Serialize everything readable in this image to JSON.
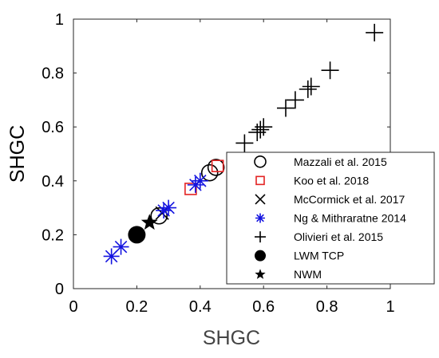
{
  "chart_data": {
    "type": "scatter",
    "xlabel": "SHGC",
    "ylabel": "SHGC",
    "xlim": [
      0,
      1
    ],
    "ylim": [
      0,
      1
    ],
    "xticks": [
      "0",
      "0.2",
      "0.4",
      "0.6",
      "0.8",
      "1"
    ],
    "yticks": [
      "0",
      "0.2",
      "0.4",
      "0.6",
      "0.8",
      "1"
    ],
    "grid": false,
    "legend_position": "right, below center",
    "series": [
      {
        "name": "Mazzali et al. 2015",
        "marker": "circle-open",
        "color": "#000000",
        "points": [
          [
            0.27,
            0.27
          ],
          [
            0.43,
            0.43
          ],
          [
            0.45,
            0.45
          ]
        ]
      },
      {
        "name": "Koo et al. 2018",
        "marker": "square-open",
        "color": "#e32323",
        "points": [
          [
            0.37,
            0.37
          ],
          [
            0.455,
            0.455
          ]
        ]
      },
      {
        "name": "McCormick et al. 2017",
        "marker": "x",
        "color": "#000000",
        "points": [
          [
            0.28,
            0.28
          ]
        ]
      },
      {
        "name": "Ng & Mithraratne 2014",
        "marker": "asterisk",
        "color": "#1414e0",
        "points": [
          [
            0.12,
            0.12
          ],
          [
            0.15,
            0.155
          ],
          [
            0.285,
            0.29
          ],
          [
            0.3,
            0.3
          ],
          [
            0.385,
            0.385
          ],
          [
            0.4,
            0.4
          ]
        ]
      },
      {
        "name": "Olivieri et al. 2015",
        "marker": "plus",
        "color": "#000000",
        "points": [
          [
            0.54,
            0.54
          ],
          [
            0.58,
            0.58
          ],
          [
            0.59,
            0.59
          ],
          [
            0.6,
            0.6
          ],
          [
            0.67,
            0.67
          ],
          [
            0.7,
            0.7
          ],
          [
            0.74,
            0.74
          ],
          [
            0.75,
            0.75
          ],
          [
            0.81,
            0.81
          ],
          [
            0.95,
            0.95
          ]
        ]
      },
      {
        "name": "LWM TCP",
        "marker": "circle-filled",
        "color": "#000000",
        "points": [
          [
            0.2,
            0.2
          ]
        ]
      },
      {
        "name": "NWM",
        "marker": "star",
        "color": "#000000",
        "points": [
          [
            0.24,
            0.245
          ]
        ]
      }
    ]
  }
}
